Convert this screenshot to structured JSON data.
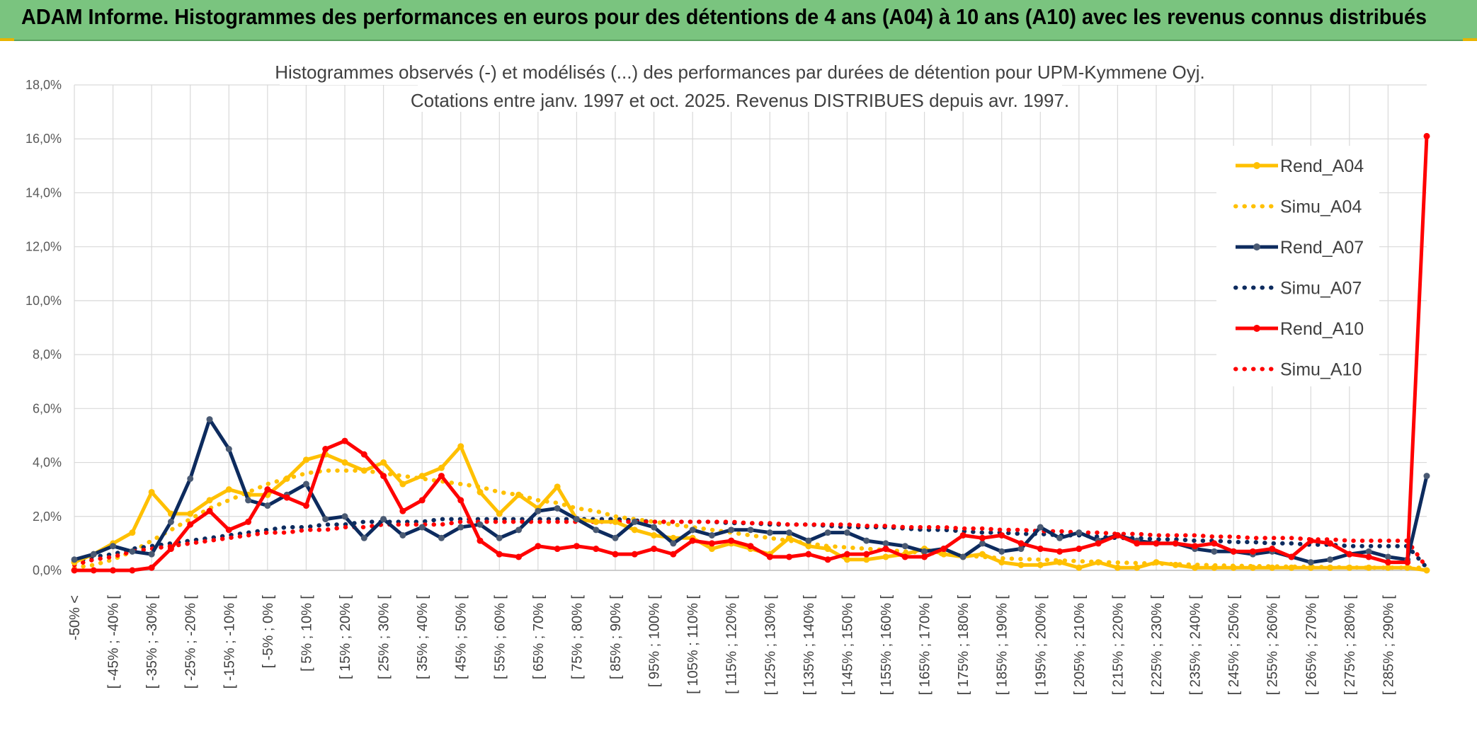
{
  "header": {
    "title": "ADAM Informe. Histogrammes des performances en euros pour des détentions de 4 ans (A04) à 10 ans (A10) avec les revenus connus distribués"
  },
  "chart_data": {
    "type": "line",
    "title": "Histogrammes observés (-) et modélisés (...) des performances par durées de détention pour UPM-Kymmene Oyj.",
    "subtitle": "Cotations entre janv. 1997 et oct. 2025. Revenus DISTRIBUES depuis avr. 1997.",
    "xlabel": "",
    "ylabel": "",
    "ylim": [
      0,
      18
    ],
    "yticks": [
      "0,0%",
      "2,0%",
      "4,0%",
      "6,0%",
      "8,0%",
      "10,0%",
      "12,0%",
      "14,0%",
      "16,0%",
      "18,0%"
    ],
    "grid": true,
    "legend_position": "top-right",
    "x_labels_shown": [
      "-50% <",
      "[ -45% ; -40% [",
      "[ -35% ; -30% [",
      "[ -25% ; -20% [",
      "[ -15% ; -10% [",
      "[ -5% ; 0% [",
      "[ 5% ; 10% [",
      "[ 15% ; 20% [",
      "[ 25% ; 30% [",
      "[ 35% ; 40% [",
      "[ 45% ; 50% [",
      "[ 55% ; 60% [",
      "[ 65% ; 70% [",
      "[ 75% ; 80% [",
      "[ 85% ; 90% [",
      "[ 95% ; 100% [",
      "[ 105% ; 110% [",
      "[ 115% ; 120% [",
      "[ 125% ; 130% [",
      "[ 135% ; 140% [",
      "[ 145% ; 150% [",
      "[ 155% ; 160% [",
      "[ 165% ; 170% [",
      "[ 175% ; 180% [",
      "[ 185% ; 190% [",
      "[ 195% ; 200% [",
      "[ 205% ; 210% [",
      "[ 215% ; 220% [",
      "[ 225% ; 230% [",
      "[ 235% ; 240% [",
      "[ 245% ; 250% [",
      "[ 255% ; 260% [",
      "[ 265% ; 270% [",
      "[ 275% ; 280% [",
      "[ 285% ; 290% ["
    ],
    "category_count": 71,
    "series": [
      {
        "name": "Rend_A04",
        "style": "solid",
        "color": "#ffc000",
        "values": [
          0.3,
          0.6,
          1.0,
          1.4,
          2.9,
          2.1,
          2.1,
          2.6,
          3.0,
          2.8,
          2.8,
          3.4,
          4.1,
          4.3,
          4.0,
          3.7,
          4.0,
          3.2,
          3.5,
          3.8,
          4.6,
          2.9,
          2.1,
          2.8,
          2.3,
          3.1,
          1.9,
          1.8,
          1.8,
          1.5,
          1.3,
          1.2,
          1.2,
          0.8,
          1.0,
          0.8,
          0.6,
          1.2,
          0.9,
          0.8,
          0.4,
          0.4,
          0.5,
          0.6,
          0.8,
          0.6,
          0.5,
          0.6,
          0.3,
          0.2,
          0.2,
          0.3,
          0.1,
          0.3,
          0.1,
          0.1,
          0.3,
          0.2,
          0.1,
          0.1,
          0.1,
          0.1,
          0.1,
          0.1,
          0.1,
          0.1,
          0.1,
          0.1,
          0.1,
          0.1,
          0.0
        ]
      },
      {
        "name": "Simu_A04",
        "style": "dotted",
        "color": "#ffc000",
        "values": [
          0.1,
          0.2,
          0.4,
          0.7,
          1.1,
          1.5,
          1.9,
          2.3,
          2.6,
          2.9,
          3.2,
          3.4,
          3.6,
          3.7,
          3.7,
          3.7,
          3.6,
          3.5,
          3.4,
          3.3,
          3.2,
          3.1,
          2.9,
          2.8,
          2.6,
          2.5,
          2.3,
          2.2,
          2.0,
          1.9,
          1.8,
          1.7,
          1.6,
          1.5,
          1.4,
          1.3,
          1.2,
          1.1,
          1.0,
          0.9,
          0.85,
          0.8,
          0.75,
          0.7,
          0.65,
          0.6,
          0.55,
          0.5,
          0.45,
          0.42,
          0.4,
          0.37,
          0.34,
          0.31,
          0.29,
          0.27,
          0.25,
          0.23,
          0.21,
          0.19,
          0.17,
          0.16,
          0.15,
          0.14,
          0.13,
          0.12,
          0.11,
          0.1,
          0.1,
          0.1,
          0.1
        ]
      },
      {
        "name": "Rend_A07",
        "style": "solid",
        "color": "#0d2b5e",
        "values": [
          0.4,
          0.6,
          0.9,
          0.7,
          0.6,
          1.8,
          3.4,
          5.6,
          4.5,
          2.6,
          2.4,
          2.8,
          3.2,
          1.9,
          2.0,
          1.2,
          1.9,
          1.3,
          1.6,
          1.2,
          1.6,
          1.7,
          1.2,
          1.5,
          2.2,
          2.3,
          1.9,
          1.5,
          1.2,
          1.8,
          1.6,
          1.0,
          1.5,
          1.3,
          1.5,
          1.5,
          1.4,
          1.4,
          1.1,
          1.4,
          1.4,
          1.1,
          1.0,
          0.9,
          0.7,
          0.8,
          0.5,
          1.0,
          0.7,
          0.8,
          1.6,
          1.2,
          1.4,
          1.1,
          1.3,
          1.1,
          1.0,
          1.0,
          0.8,
          0.7,
          0.7,
          0.6,
          0.7,
          0.5,
          0.3,
          0.4,
          0.6,
          0.7,
          0.5,
          0.4,
          3.5
        ]
      },
      {
        "name": "Simu_A07",
        "style": "dotted",
        "color": "#0d2b5e",
        "values": [
          0.3,
          0.5,
          0.6,
          0.8,
          0.9,
          1.0,
          1.1,
          1.2,
          1.3,
          1.4,
          1.5,
          1.6,
          1.6,
          1.7,
          1.7,
          1.8,
          1.8,
          1.8,
          1.8,
          1.9,
          1.9,
          1.9,
          1.9,
          1.9,
          1.9,
          1.9,
          1.9,
          1.9,
          1.9,
          1.85,
          1.8,
          1.8,
          1.8,
          1.8,
          1.75,
          1.75,
          1.7,
          1.7,
          1.7,
          1.65,
          1.6,
          1.6,
          1.6,
          1.55,
          1.5,
          1.5,
          1.45,
          1.4,
          1.4,
          1.35,
          1.35,
          1.3,
          1.3,
          1.25,
          1.2,
          1.2,
          1.15,
          1.15,
          1.1,
          1.1,
          1.05,
          1.05,
          1.0,
          1.0,
          0.95,
          0.95,
          0.9,
          0.9,
          0.9,
          0.9,
          0.1
        ]
      },
      {
        "name": "Rend_A10",
        "style": "solid",
        "color": "#ff0000",
        "values": [
          0.0,
          0.0,
          0.0,
          0.0,
          0.1,
          0.8,
          1.7,
          2.2,
          1.5,
          1.8,
          3.0,
          2.7,
          2.4,
          4.5,
          4.8,
          4.3,
          3.5,
          2.2,
          2.6,
          3.5,
          2.6,
          1.1,
          0.6,
          0.5,
          0.9,
          0.8,
          0.9,
          0.8,
          0.6,
          0.6,
          0.8,
          0.6,
          1.1,
          1.0,
          1.1,
          0.9,
          0.5,
          0.5,
          0.6,
          0.4,
          0.6,
          0.6,
          0.8,
          0.5,
          0.5,
          0.8,
          1.3,
          1.2,
          1.3,
          1.0,
          0.8,
          0.7,
          0.8,
          1.0,
          1.3,
          1.0,
          1.0,
          1.0,
          0.9,
          1.0,
          0.7,
          0.7,
          0.8,
          0.5,
          1.1,
          1.0,
          0.6,
          0.5,
          0.3,
          0.3,
          16.1
        ]
      },
      {
        "name": "Simu_A10",
        "style": "dotted",
        "color": "#ff0000",
        "values": [
          0.2,
          0.4,
          0.5,
          0.7,
          0.8,
          0.9,
          1.0,
          1.1,
          1.2,
          1.3,
          1.4,
          1.4,
          1.5,
          1.5,
          1.6,
          1.6,
          1.7,
          1.7,
          1.7,
          1.7,
          1.8,
          1.8,
          1.8,
          1.8,
          1.8,
          1.8,
          1.8,
          1.8,
          1.8,
          1.8,
          1.8,
          1.8,
          1.8,
          1.8,
          1.8,
          1.75,
          1.75,
          1.7,
          1.7,
          1.7,
          1.7,
          1.65,
          1.65,
          1.6,
          1.6,
          1.6,
          1.55,
          1.55,
          1.5,
          1.5,
          1.45,
          1.45,
          1.4,
          1.4,
          1.35,
          1.35,
          1.3,
          1.3,
          1.3,
          1.25,
          1.25,
          1.2,
          1.2,
          1.2,
          1.15,
          1.15,
          1.1,
          1.1,
          1.1,
          1.1,
          0.1
        ]
      }
    ]
  }
}
